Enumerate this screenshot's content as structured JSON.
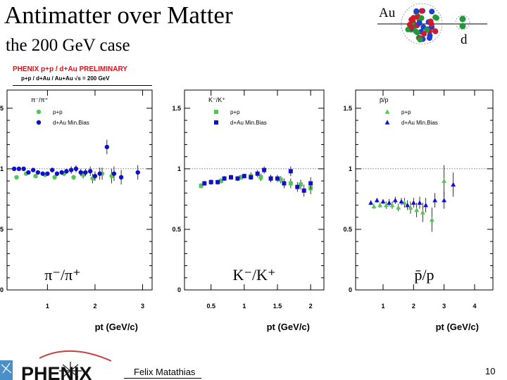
{
  "slide": {
    "title": "Antimatter over Matter",
    "subtitle": "the 200 GeV case",
    "au_label": "Au",
    "d_label": "d",
    "phenix_header": "PHENIX p+p / d+Au PRELIMINARY",
    "system_header": "p+p / d+Au / Au+Au  √s = 200 GeV",
    "author": "Felix Matathias",
    "page_number": "10",
    "logo_text": "PHENIX"
  },
  "colors": {
    "pp": "#55c655",
    "dau": "#1010cc",
    "header": "#e0101a"
  },
  "chart_data": [
    {
      "type": "scatter",
      "title": "π⁻/π⁺",
      "big_label": "π⁻/π⁺",
      "xlabel": "pt (GeV/c)",
      "xlim": [
        0.15,
        3.2
      ],
      "ylim": [
        0,
        1.65
      ],
      "xticks": [
        "1",
        "2",
        "3"
      ],
      "xtick_values": [
        1,
        2,
        3
      ],
      "yticks": [
        "0",
        "0.5",
        "1",
        "1.5"
      ],
      "ytick_values": [
        0,
        0.5,
        1,
        1.5
      ],
      "marker": "circle",
      "legend": [
        "p+p",
        "d+Au  Min.Bias"
      ],
      "series": [
        {
          "name": "p+p",
          "x": [
            0.35,
            0.55,
            0.75,
            0.95,
            1.15,
            1.35,
            1.55,
            1.75,
            1.95,
            2.15,
            2.35
          ],
          "y": [
            0.93,
            0.96,
            0.94,
            0.95,
            0.93,
            0.96,
            0.93,
            0.95,
            0.92,
            0.96,
            0.94
          ],
          "err": [
            0.01,
            0.01,
            0.01,
            0.01,
            0.01,
            0.02,
            0.02,
            0.03,
            0.04,
            0.05,
            0.06
          ]
        },
        {
          "name": "d+Au  Min.Bias",
          "x": [
            0.3,
            0.4,
            0.5,
            0.6,
            0.7,
            0.8,
            0.9,
            1.0,
            1.1,
            1.2,
            1.3,
            1.4,
            1.5,
            1.6,
            1.7,
            1.8,
            1.9,
            2.0,
            2.1,
            2.25,
            2.4,
            2.55,
            2.9
          ],
          "y": [
            1.0,
            1.0,
            1.0,
            0.97,
            0.99,
            0.97,
            0.96,
            0.96,
            0.99,
            0.96,
            0.97,
            0.98,
            0.99,
            1.0,
            0.97,
            0.97,
            0.98,
            0.94,
            0.96,
            1.18,
            0.96,
            0.93,
            0.97
          ],
          "err": [
            0.01,
            0.01,
            0.01,
            0.01,
            0.01,
            0.01,
            0.01,
            0.01,
            0.02,
            0.02,
            0.02,
            0.02,
            0.03,
            0.03,
            0.03,
            0.03,
            0.04,
            0.04,
            0.05,
            0.06,
            0.06,
            0.06,
            0.06
          ]
        }
      ]
    },
    {
      "type": "scatter",
      "title": "K⁻/K⁺",
      "big_label": "K⁻/K⁺",
      "xlabel": "pt (GeV/c)",
      "xlim": [
        0.1,
        2.2
      ],
      "ylim": [
        0,
        1.65
      ],
      "xticks": [
        "0.5",
        "1",
        "1.5",
        "2"
      ],
      "xtick_values": [
        0.5,
        1,
        1.5,
        2
      ],
      "yticks": [
        "0",
        "0.5",
        "1",
        "1.5"
      ],
      "ytick_values": [
        0,
        0.5,
        1,
        1.5
      ],
      "marker": "square",
      "legend": [
        "p+p",
        "d+Au  Min.Bias"
      ],
      "series": [
        {
          "name": "p+p",
          "x": [
            0.35,
            0.5,
            0.65,
            0.8,
            0.95,
            1.1,
            1.25,
            1.4,
            1.55,
            1.7,
            1.85,
            2.0
          ],
          "y": [
            0.86,
            0.89,
            0.9,
            0.93,
            0.93,
            0.94,
            0.93,
            0.92,
            0.91,
            0.88,
            0.87,
            0.84
          ],
          "err": [
            0.02,
            0.02,
            0.02,
            0.02,
            0.02,
            0.03,
            0.03,
            0.03,
            0.03,
            0.04,
            0.04,
            0.05
          ]
        },
        {
          "name": "d+Au  Min.Bias",
          "x": [
            0.4,
            0.5,
            0.6,
            0.7,
            0.8,
            0.9,
            1.0,
            1.1,
            1.2,
            1.3,
            1.4,
            1.5,
            1.6,
            1.7,
            1.8,
            1.9,
            2.0
          ],
          "y": [
            0.88,
            0.89,
            0.89,
            0.92,
            0.93,
            0.92,
            0.94,
            0.93,
            0.96,
            0.99,
            0.92,
            0.92,
            0.88,
            0.98,
            0.85,
            0.82,
            0.88
          ],
          "err": [
            0.02,
            0.02,
            0.02,
            0.02,
            0.02,
            0.02,
            0.02,
            0.02,
            0.03,
            0.03,
            0.03,
            0.03,
            0.04,
            0.04,
            0.04,
            0.05,
            0.05
          ]
        }
      ]
    },
    {
      "type": "scatter",
      "title": "p̄/p",
      "big_label": "p̄/p",
      "xlabel": "pt (GeV/c)",
      "xlim": [
        0.1,
        4.6
      ],
      "ylim": [
        0,
        1.65
      ],
      "xticks": [
        "1",
        "2",
        "3",
        "4"
      ],
      "xtick_values": [
        1,
        2,
        3,
        4
      ],
      "yticks": [
        "0",
        "0.5",
        "1",
        "1.5"
      ],
      "ytick_values": [
        0,
        0.5,
        1,
        1.5
      ],
      "marker": "triangle",
      "legend": [
        "p+p",
        "d+Au  Min.Bias"
      ],
      "series": [
        {
          "name": "p+p",
          "x": [
            0.7,
            0.9,
            1.1,
            1.3,
            1.5,
            1.7,
            1.9,
            2.1,
            2.3,
            2.6,
            3.0
          ],
          "y": [
            0.69,
            0.7,
            0.7,
            0.7,
            0.68,
            0.72,
            0.68,
            0.66,
            0.64,
            0.58,
            0.9
          ],
          "err": [
            0.02,
            0.02,
            0.03,
            0.03,
            0.03,
            0.04,
            0.05,
            0.06,
            0.08,
            0.1,
            0.13
          ]
        },
        {
          "name": "d+Au  Min.Bias",
          "x": [
            0.6,
            0.8,
            1.0,
            1.2,
            1.4,
            1.6,
            1.8,
            2.0,
            2.2,
            2.4,
            2.7,
            3.0,
            3.3
          ],
          "y": [
            0.72,
            0.74,
            0.73,
            0.72,
            0.74,
            0.73,
            0.7,
            0.72,
            0.72,
            0.7,
            0.74,
            0.74,
            0.87
          ],
          "err": [
            0.02,
            0.02,
            0.02,
            0.03,
            0.03,
            0.03,
            0.04,
            0.04,
            0.05,
            0.06,
            0.06,
            0.07,
            0.1
          ]
        }
      ]
    }
  ]
}
